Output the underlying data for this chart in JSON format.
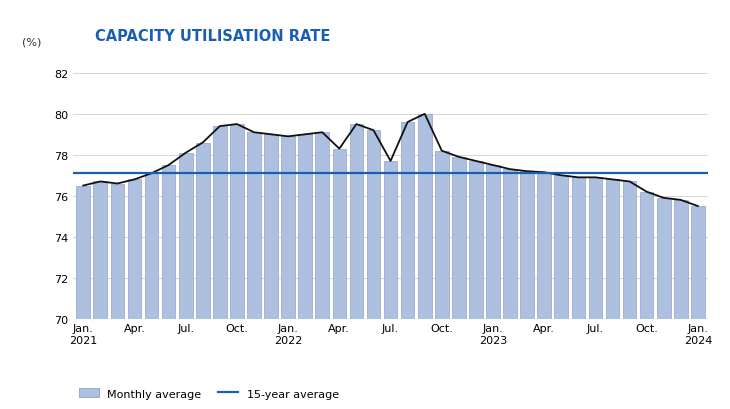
{
  "title": "CAPACITY UTILISATION RATE",
  "ylabel": "(%)",
  "ylim": [
    70,
    83
  ],
  "yticks": [
    70,
    72,
    74,
    76,
    78,
    80,
    82
  ],
  "fifteen_year_avg": 77.1,
  "bar_color": "#aec0e0",
  "bar_edge_color": "#8090c0",
  "line_color": "#111111",
  "avg_line_color": "#1a5faf",
  "background_color": "#ffffff",
  "tick_labels": [
    "Jan.\n2021",
    "Apr.",
    "Jul.",
    "Oct.",
    "Jan.\n2022",
    "Apr.",
    "Jul.",
    "Oct.",
    "Jan.\n2023",
    "Apr.",
    "Jul.",
    "Oct.",
    "Jan.\n2024"
  ],
  "tick_positions": [
    0,
    3,
    6,
    9,
    12,
    15,
    18,
    21,
    24,
    27,
    30,
    33,
    36
  ],
  "values": [
    76.5,
    76.7,
    76.6,
    76.8,
    77.1,
    77.5,
    78.1,
    78.6,
    79.4,
    79.5,
    79.1,
    79.0,
    78.9,
    79.0,
    79.1,
    78.3,
    79.5,
    79.2,
    77.7,
    79.6,
    80.0,
    78.2,
    77.9,
    77.7,
    77.5,
    77.3,
    77.2,
    77.15,
    77.0,
    76.9,
    76.9,
    76.8,
    76.7,
    76.2,
    75.9,
    75.8,
    75.5
  ],
  "n_months": 37
}
